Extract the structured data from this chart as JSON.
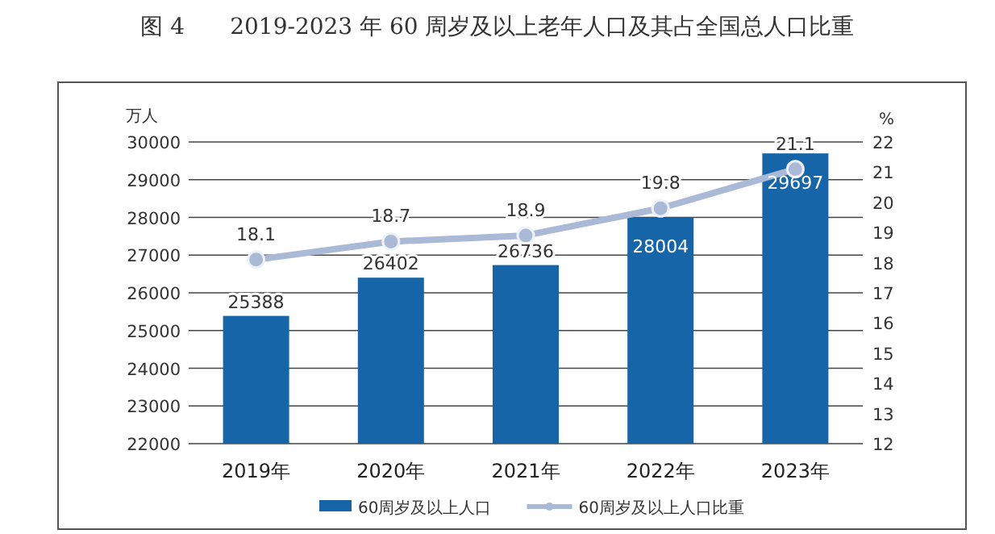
{
  "chart_data": {
    "type": "bar",
    "title": "图 4　　2019-2023 年 60 周岁及以上老年人口及其占全国总人口比重",
    "categories": [
      "2019年",
      "2020年",
      "2021年",
      "2022年",
      "2023年"
    ],
    "ylabel": "万人",
    "y2label": "%",
    "series": [
      {
        "name": "60周岁及以上人口",
        "color": "#1565a8",
        "values": [
          25388,
          26402,
          26736,
          28004,
          29697
        ]
      },
      {
        "name": "60周岁及以上人口比重",
        "type": "line",
        "axis": "y2",
        "color": "#a9b9d6",
        "marker": "circle",
        "values": [
          18.1,
          18.7,
          18.9,
          19.8,
          21.1
        ]
      }
    ],
    "ylim": [
      22000,
      30000
    ],
    "yticks": [
      22000,
      23000,
      24000,
      25000,
      26000,
      27000,
      28000,
      29000,
      30000
    ],
    "y2lim": [
      12,
      22
    ],
    "y2ticks": [
      12,
      13,
      14,
      15,
      16,
      17,
      18,
      19,
      20,
      21,
      22
    ],
    "grid": "y",
    "legend": "bottom",
    "data_labels": true
  }
}
